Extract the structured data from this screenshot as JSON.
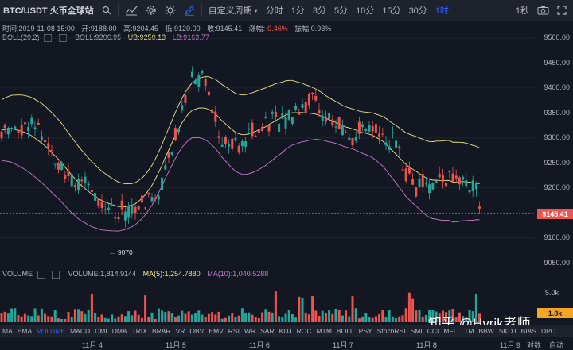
{
  "toolbar": {
    "symbol": "BTC/USDT 火币全球站",
    "custom_period": "自定义周期",
    "intervals": [
      "分时",
      "1分",
      "3分",
      "5分",
      "10分",
      "15分",
      "30分",
      "1时"
    ],
    "active_interval": "1时",
    "right_label": "1秒"
  },
  "ohlc": {
    "time": "时间:2019-11-08 15:00",
    "open": "开:9188.00",
    "high": "高:9204.45",
    "low": "低:9120.00",
    "close": "收:9145.41",
    "change_label": "涨幅:",
    "change_value": "-0.46%",
    "amplitude": "振幅:0.93%"
  },
  "boll": {
    "name": "BOLL(20,2)",
    "mid": "BOLL:9206.95",
    "ub": "UB:9250.13",
    "lb": "LB:9163.77"
  },
  "price_axis": [
    "9500.00",
    "9450.00",
    "9400.00",
    "9350.00",
    "9300.00",
    "9250.00",
    "9200.00",
    "9150.00",
    "9100.00",
    "9050.00"
  ],
  "current_price": "9145.41",
  "low_marker": "← 9070",
  "volume": {
    "name": "VOLUME",
    "value": "VOLUME:1,814.9144",
    "ma5": "MA(5):1,254.7880",
    "ma10": "MA(10):1,040.5288",
    "axis_5k": "5.0k",
    "badge": "1.8k"
  },
  "indicators": [
    "MA",
    "EMA",
    "VOLUME",
    "MACD",
    "DMI",
    "DMA",
    "TRIX",
    "BRAR",
    "VR",
    "OBV",
    "EMV",
    "RSI",
    "WR",
    "SAR",
    "KDJ",
    "ROC",
    "MTM",
    "BOLL",
    "PSY",
    "StochRSI",
    "SMI",
    "CCI",
    "MFI",
    "TTM",
    "BBW",
    "SKDJ",
    "BIAS",
    "DPO"
  ],
  "active_indicator": "VOLUME",
  "dates": [
    "11月 4",
    "11月 5",
    "11月 6",
    "11月 7",
    "11月 8",
    "11月 9"
  ],
  "date_right": "对数",
  "date_right2": "自动",
  "watermark": "知乎 @Hyrik老师",
  "colors": {
    "up": "#26a69a",
    "down": "#ef5350",
    "mid": "#e8e38a",
    "band": "#c77ec9"
  }
}
